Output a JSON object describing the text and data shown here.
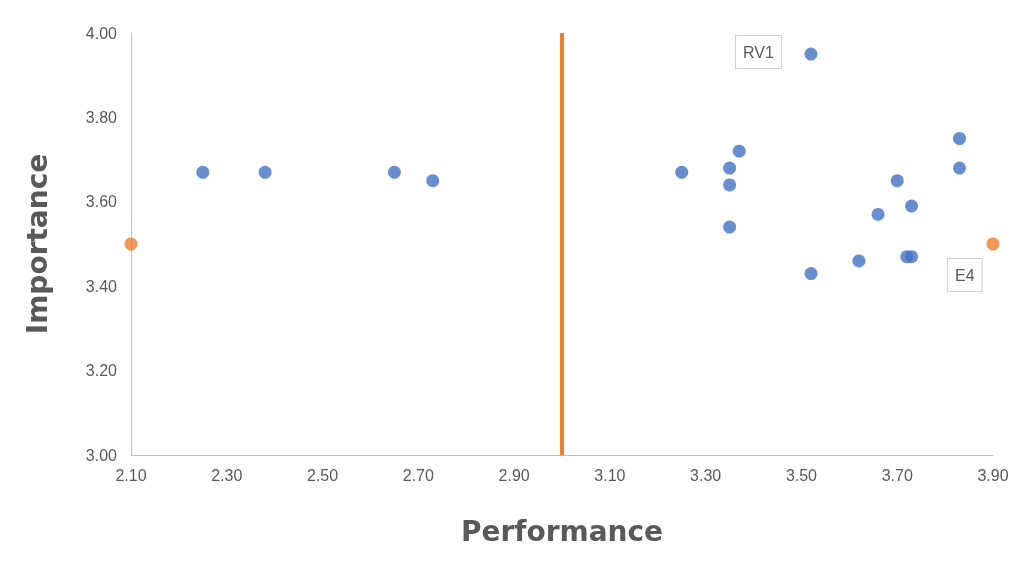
{
  "chart_data": {
    "type": "scatter",
    "xlabel": "Performance",
    "ylabel": "Importance",
    "xlim": [
      2.1,
      3.9
    ],
    "ylim": [
      3.0,
      4.0
    ],
    "xticks": [
      {
        "value": 2.1,
        "label": "2.10"
      },
      {
        "value": 2.3,
        "label": "2.30"
      },
      {
        "value": 2.5,
        "label": "2.50"
      },
      {
        "value": 2.7,
        "label": "2.70"
      },
      {
        "value": 2.9,
        "label": "2.90"
      },
      {
        "value": 3.1,
        "label": "3.10"
      },
      {
        "value": 3.3,
        "label": "3.30"
      },
      {
        "value": 3.5,
        "label": "3.50"
      },
      {
        "value": 3.7,
        "label": "3.70"
      },
      {
        "value": 3.9,
        "label": "3.90"
      }
    ],
    "yticks": [
      {
        "value": 3.0,
        "label": "3.00"
      },
      {
        "value": 3.2,
        "label": "3.20"
      },
      {
        "value": 3.4,
        "label": "3.40"
      },
      {
        "value": 3.6,
        "label": "3.60"
      },
      {
        "value": 3.8,
        "label": "3.80"
      },
      {
        "value": 4.0,
        "label": "4.00"
      }
    ],
    "grid": false,
    "marker": "circle",
    "series": [
      {
        "color": "#4472c4",
        "x": [
          2.25,
          2.38,
          2.65,
          2.73,
          3.25,
          3.35,
          3.35,
          3.35,
          3.37,
          3.52,
          3.52,
          3.62,
          3.66,
          3.7,
          3.72,
          3.73,
          3.73,
          3.83,
          3.83
        ],
        "values": [
          3.67,
          3.67,
          3.67,
          3.65,
          3.67,
          3.68,
          3.64,
          3.54,
          3.72,
          3.95,
          3.43,
          3.46,
          3.57,
          3.65,
          3.47,
          3.47,
          3.59,
          3.75,
          3.68
        ]
      },
      {
        "color": "#ed7d31",
        "x": [
          2.1,
          3.9
        ],
        "values": [
          3.5,
          3.5
        ]
      }
    ],
    "ref_lines": [
      {
        "axis": "x",
        "value": 3.0,
        "color": "#ed7d31"
      }
    ],
    "annotations": [
      {
        "text": "RV1",
        "x": 3.52,
        "y": 3.95
      },
      {
        "text": "E4",
        "x": 3.9,
        "y": 3.5
      }
    ]
  }
}
